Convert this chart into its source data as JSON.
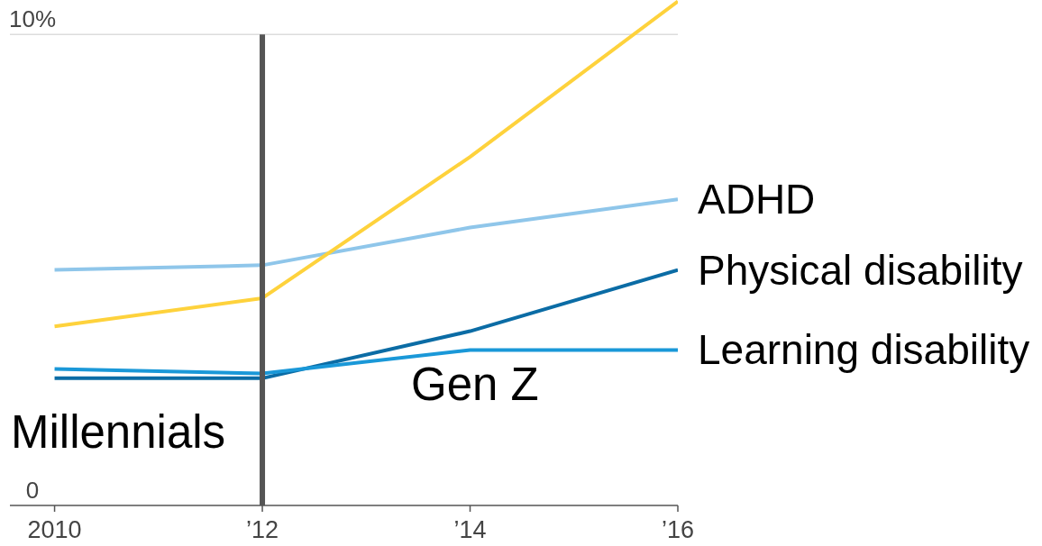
{
  "chart_data": {
    "type": "line",
    "x": [
      2010,
      2012,
      2014,
      2016
    ],
    "series": [
      {
        "name": "ADHD",
        "color": "#8fc6ea",
        "values": [
          5.0,
          5.1,
          5.9,
          6.5
        ]
      },
      {
        "name": "Physical disability",
        "color": "#0b6ca5",
        "values": [
          2.7,
          2.7,
          3.7,
          5.0
        ]
      },
      {
        "name": "Learning disability",
        "color": "#1a98d8",
        "values": [
          2.9,
          2.8,
          3.3,
          3.3
        ]
      },
      {
        "color": "#fed23c",
        "values": [
          3.8,
          4.4,
          7.4,
          10.7
        ]
      }
    ],
    "xlim": [
      2009.57,
      2016
    ],
    "xticks": [
      2010,
      {
        "value": 2012,
        "label": "’12"
      },
      {
        "value": 2014,
        "label": "’14"
      },
      {
        "value": 2016,
        "label": "’16"
      }
    ],
    "ylim": [
      0,
      10.73
    ],
    "yticks": [
      0,
      {
        "value": 10,
        "label": "10%"
      }
    ],
    "legend": false,
    "ref_lines": [
      {
        "axis": "y",
        "value": 10,
        "color": "#dcdcdc"
      },
      {
        "axis": "x",
        "value": 2012,
        "color": "#555555"
      }
    ],
    "annotations": [
      "Millennials",
      "Gen Z"
    ]
  }
}
